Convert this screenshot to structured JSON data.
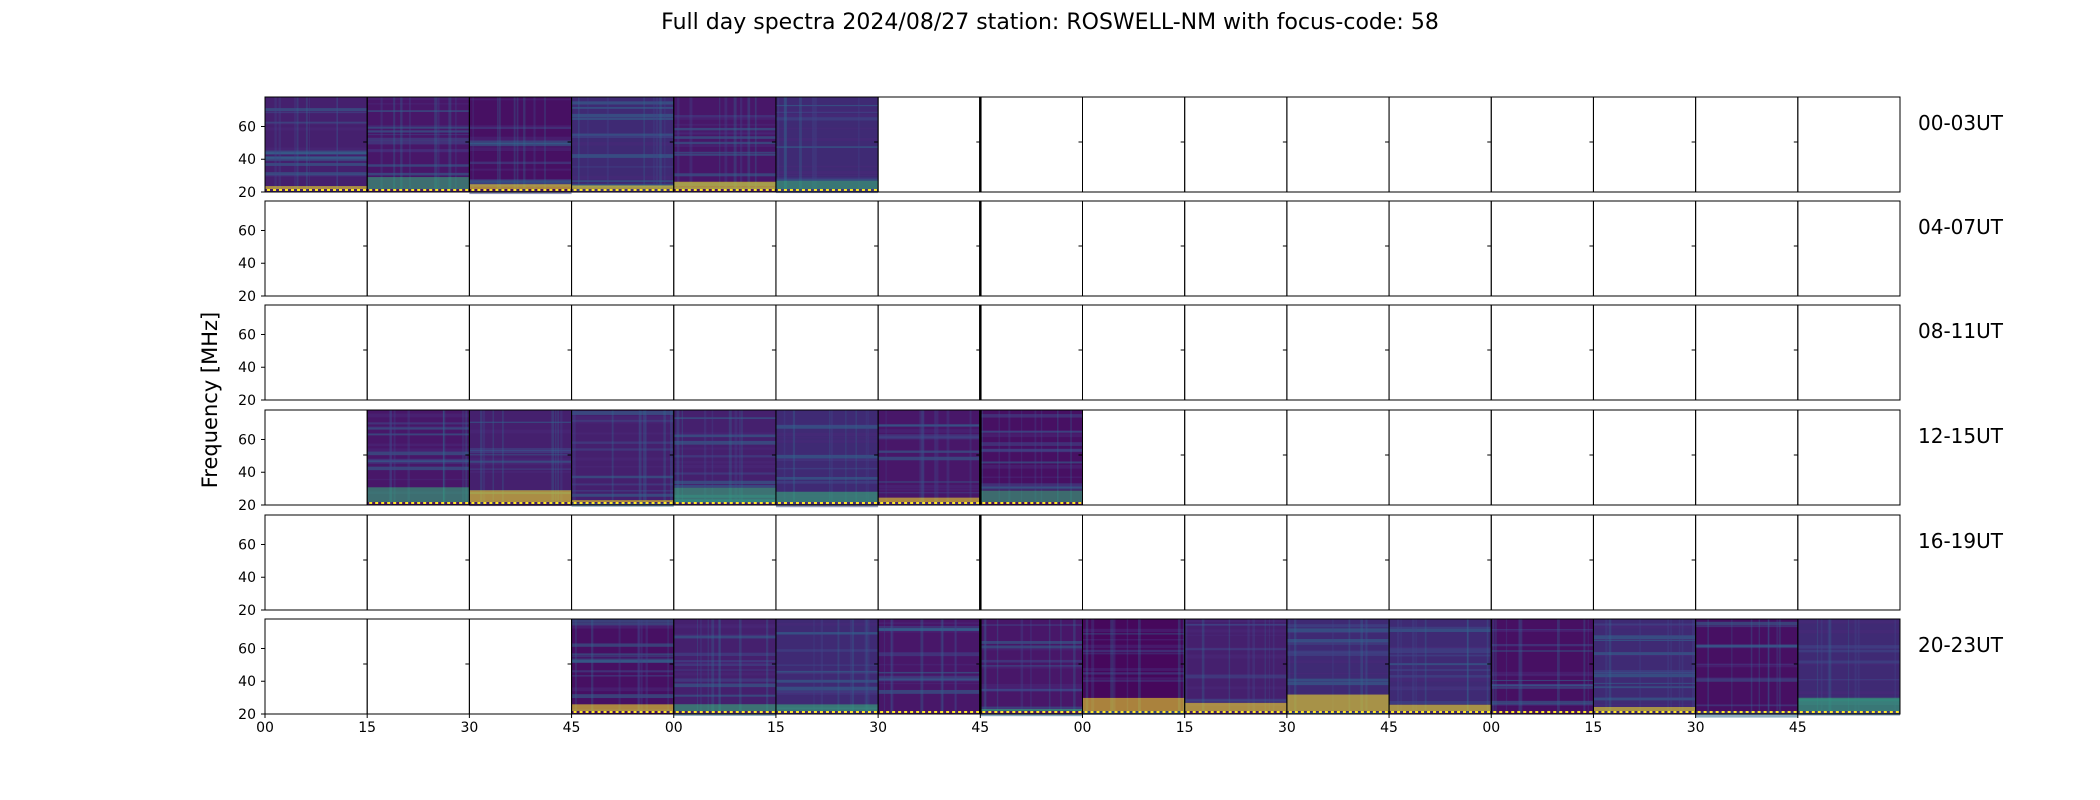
{
  "chart_data": {
    "type": "heatmap",
    "title": "Full day spectra 2024/08/27 station: ROSWELL-NM with focus-code: 58",
    "ylabel": "Frequency [MHz]",
    "xlabel": "",
    "ylim": [
      20,
      78
    ],
    "yticks": [
      20,
      40,
      60
    ],
    "xticks": [
      "00",
      "15",
      "30",
      "45",
      "00",
      "15",
      "30",
      "45",
      "00",
      "15",
      "30",
      "45",
      "00",
      "15",
      "30",
      "45"
    ],
    "colormap": "viridis",
    "rows": [
      {
        "label": "00-03UT",
        "segments_with_data": [
          0,
          1,
          2,
          3,
          4,
          5
        ]
      },
      {
        "label": "04-07UT",
        "segments_with_data": []
      },
      {
        "label": "08-11UT",
        "segments_with_data": []
      },
      {
        "label": "12-15UT",
        "segments_with_data": [
          1,
          2,
          3,
          4,
          5,
          6,
          7
        ]
      },
      {
        "label": "16-19UT",
        "segments_with_data": []
      },
      {
        "label": "20-23UT",
        "segments_with_data": [
          3,
          4,
          5,
          6,
          7,
          8,
          9,
          10,
          11,
          12,
          13,
          14,
          15
        ]
      }
    ]
  }
}
